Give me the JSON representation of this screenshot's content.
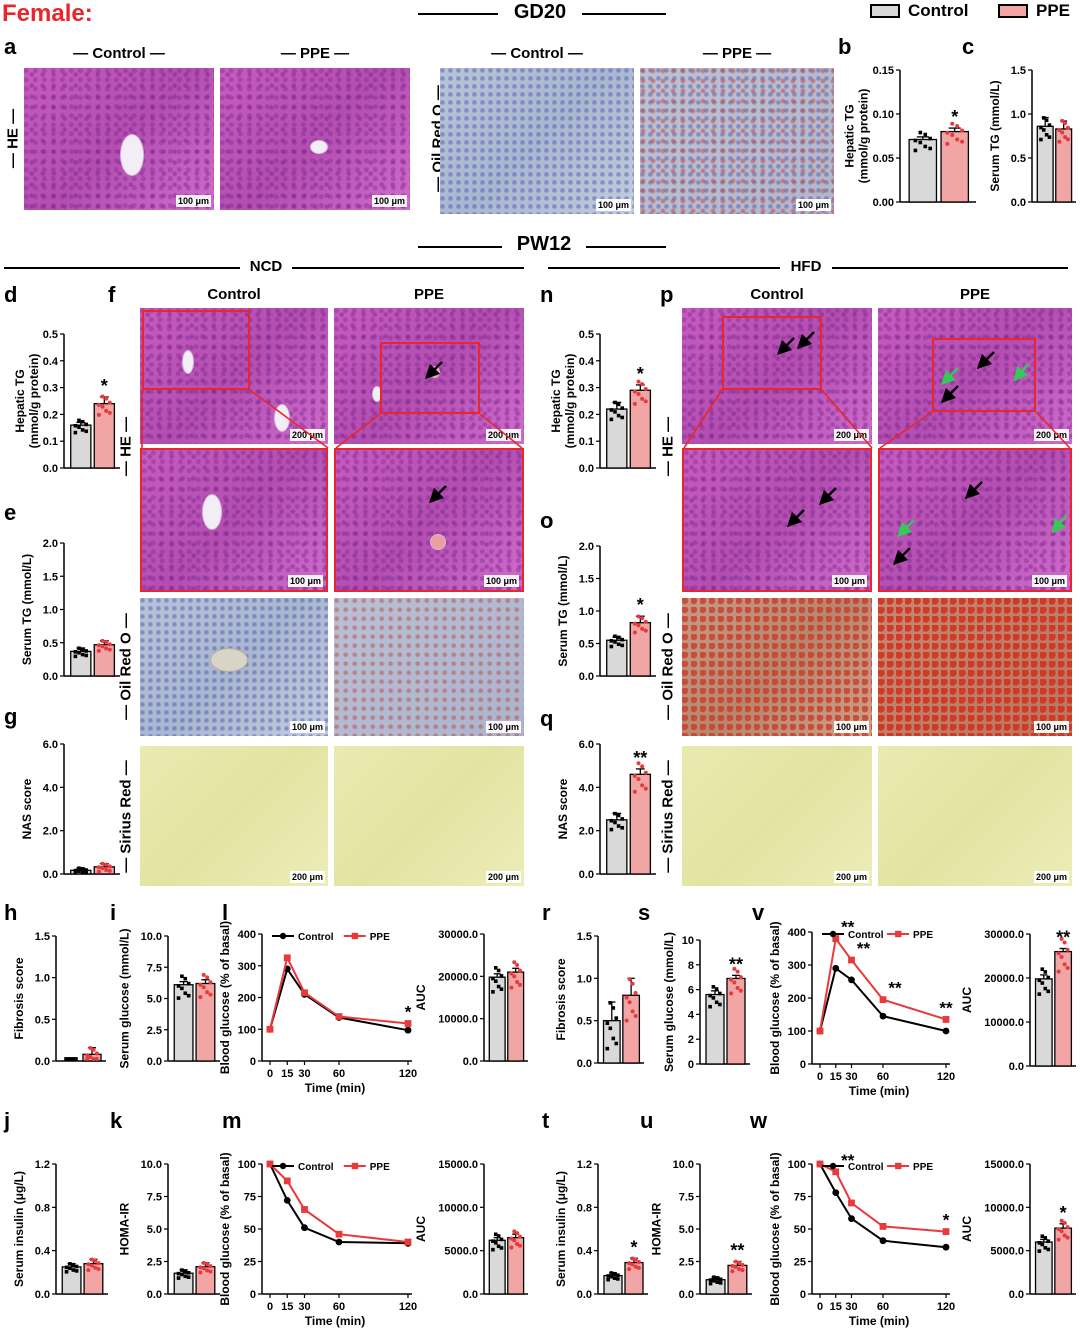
{
  "figure": {
    "section_female": "Female:",
    "gd_header": "GD20",
    "pw_header": "PW12",
    "ncd_header": "NCD",
    "hfd_header": "HFD",
    "legend": {
      "control": "Control",
      "ppe": "PPE"
    },
    "colors": {
      "control": "#d9d9d9",
      "ppe": "#f2a5a5",
      "ppe_line": "#e8393d",
      "control_line": "#000000",
      "red_text": "#e8262b"
    },
    "col_control": "— Control —",
    "col_ppe": "— PPE —",
    "col_control_plain": "Control",
    "col_ppe_plain": "PPE",
    "row_he": "— HE —",
    "row_oil": "— Oil Red O —",
    "row_sirius": "— Sirius Red —",
    "scale_100": "100 μm",
    "scale_200": "200 μm",
    "panel_letters": [
      "a",
      "b",
      "c",
      "d",
      "e",
      "f",
      "g",
      "h",
      "i",
      "j",
      "k",
      "l",
      "m",
      "n",
      "o",
      "p",
      "q",
      "r",
      "s",
      "t",
      "u",
      "v",
      "w"
    ]
  },
  "chart_data": [
    {
      "id": "b",
      "type": "bar",
      "ylabel": "Hepatic TG\n(mmol/g protein)",
      "yticks": [
        "0.00",
        "0.05",
        "0.10",
        "0.15"
      ],
      "ylim": [
        0,
        0.15
      ],
      "categories": [
        "Control",
        "PPE"
      ],
      "values": [
        0.071,
        0.08
      ],
      "errors": [
        0.003,
        0.004
      ],
      "sig": [
        "",
        "*"
      ]
    },
    {
      "id": "c",
      "type": "bar",
      "ylabel": "Serum TG (mmol/L)",
      "yticks": [
        "0.0",
        "0.5",
        "1.0",
        "1.5"
      ],
      "ylim": [
        0,
        1.5
      ],
      "categories": [
        "Control",
        "PPE"
      ],
      "values": [
        0.86,
        0.83
      ],
      "errors": [
        0.1,
        0.09
      ],
      "sig": [
        "",
        ""
      ]
    },
    {
      "id": "d",
      "type": "bar",
      "ylabel": "Hepatic TG\n(mmol/g protein)",
      "yticks": [
        "0.0",
        "0.1",
        "0.2",
        "0.3",
        "0.4",
        "0.5"
      ],
      "ylim": [
        0,
        0.5
      ],
      "categories": [
        "Control",
        "PPE"
      ],
      "values": [
        0.16,
        0.24
      ],
      "errors": [
        0.01,
        0.025
      ],
      "sig": [
        "",
        "*"
      ]
    },
    {
      "id": "e",
      "type": "bar",
      "ylabel": "Serum TG (mmol/L)",
      "yticks": [
        "0.0",
        "0.5",
        "1.0",
        "1.5",
        "2.0"
      ],
      "ylim": [
        0,
        2.0
      ],
      "categories": [
        "Control",
        "PPE"
      ],
      "values": [
        0.37,
        0.47
      ],
      "errors": [
        0.05,
        0.06
      ],
      "sig": [
        "",
        ""
      ]
    },
    {
      "id": "g",
      "type": "bar",
      "ylabel": "NAS score",
      "yticks": [
        "0.0",
        "2.0",
        "4.0",
        "6.0"
      ],
      "ylim": [
        0,
        6
      ],
      "categories": [
        "Control",
        "PPE"
      ],
      "values": [
        0.17,
        0.33
      ],
      "errors": [
        0.1,
        0.15
      ],
      "sig": [
        "",
        ""
      ]
    },
    {
      "id": "n",
      "type": "bar",
      "ylabel": "Hepatic TG\n(mmol/g protein)",
      "yticks": [
        "0.0",
        "0.1",
        "0.2",
        "0.3",
        "0.4",
        "0.5"
      ],
      "ylim": [
        0,
        0.5
      ],
      "categories": [
        "Control",
        "PPE"
      ],
      "values": [
        0.22,
        0.29
      ],
      "errors": [
        0.025,
        0.02
      ],
      "sig": [
        "",
        "*"
      ]
    },
    {
      "id": "o",
      "type": "bar",
      "ylabel": "Serum TG (mmol/L)",
      "yticks": [
        "0.0",
        "0.5",
        "1.0",
        "1.5",
        "2.0"
      ],
      "ylim": [
        0,
        2.0
      ],
      "categories": [
        "Control",
        "PPE"
      ],
      "values": [
        0.55,
        0.82
      ],
      "errors": [
        0.05,
        0.1
      ],
      "sig": [
        "",
        "*"
      ]
    },
    {
      "id": "q",
      "type": "bar",
      "ylabel": "NAS score",
      "yticks": [
        "0.0",
        "2.0",
        "4.0",
        "6.0"
      ],
      "ylim": [
        0,
        6
      ],
      "categories": [
        "Control",
        "PPE"
      ],
      "values": [
        2.5,
        4.6
      ],
      "errors": [
        0.3,
        0.25
      ],
      "sig": [
        "",
        "**"
      ]
    },
    {
      "id": "h",
      "type": "bar",
      "ylabel": "Fibrosis score",
      "yticks": [
        "0.0",
        "0.5",
        "1.0",
        "1.5"
      ],
      "ylim": [
        0,
        1.5
      ],
      "categories": [
        "Control",
        "PPE"
      ],
      "values": [
        0.0,
        0.08
      ],
      "errors": [
        0,
        0.08
      ],
      "sig": [
        "",
        ""
      ]
    },
    {
      "id": "i",
      "type": "bar",
      "ylabel": "Serum glucose (mmol/L)",
      "yticks": [
        "0.0",
        "2.5",
        "5.0",
        "7.5",
        "10.0"
      ],
      "ylim": [
        0,
        10
      ],
      "categories": [
        "Control",
        "PPE"
      ],
      "values": [
        6.1,
        6.2
      ],
      "errors": [
        0.25,
        0.3
      ],
      "sig": [
        "",
        ""
      ]
    },
    {
      "id": "l",
      "type": "line",
      "xlabel": "Time (min)",
      "ylabel": "Blood glucose (% of basal)",
      "x": [
        0,
        15,
        30,
        60,
        120
      ],
      "xticks": [
        "0",
        "15",
        "30",
        "60",
        "120"
      ],
      "yticks": [
        "0",
        "100",
        "200",
        "300",
        "400"
      ],
      "ylim": [
        0,
        400
      ],
      "series": [
        {
          "name": "Control",
          "values": [
            100,
            290,
            210,
            137,
            97
          ]
        },
        {
          "name": "PPE",
          "values": [
            100,
            325,
            215,
            140,
            118
          ]
        }
      ],
      "sig": [
        "",
        "",
        "",
        "",
        "*"
      ]
    },
    {
      "id": "l_auc",
      "type": "bar",
      "ylabel": "AUC",
      "yticks": [
        "0.0",
        "10000.0",
        "20000.0",
        "30000.0"
      ],
      "ylim": [
        0,
        30000
      ],
      "categories": [
        "Control",
        "PPE"
      ],
      "values": [
        19800,
        21000
      ],
      "errors": [
        800,
        900
      ],
      "sig": [
        "",
        ""
      ]
    },
    {
      "id": "r",
      "type": "bar",
      "ylabel": "Fibrosis score",
      "yticks": [
        "0.0",
        "0.5",
        "1.0",
        "1.5"
      ],
      "ylim": [
        0,
        1.5
      ],
      "categories": [
        "Control",
        "PPE"
      ],
      "values": [
        0.5,
        0.8
      ],
      "errors": [
        0.22,
        0.2
      ],
      "sig": [
        "",
        ""
      ]
    },
    {
      "id": "s",
      "type": "bar",
      "ylabel": "Serum glucose (mmol/L)",
      "yticks": [
        "0",
        "2",
        "4",
        "6",
        "8",
        "10"
      ],
      "ylim": [
        0,
        10
      ],
      "categories": [
        "Control",
        "PPE"
      ],
      "values": [
        5.6,
        6.9
      ],
      "errors": [
        0.3,
        0.25
      ],
      "sig": [
        "",
        "**"
      ]
    },
    {
      "id": "v",
      "type": "line",
      "xlabel": "Time (min)",
      "ylabel": "Blood glucose (% of basal)",
      "x": [
        0,
        15,
        30,
        60,
        120
      ],
      "xticks": [
        "0",
        "15",
        "30",
        "60",
        "120"
      ],
      "yticks": [
        "0",
        "100",
        "200",
        "300",
        "400"
      ],
      "ylim": [
        0,
        400
      ],
      "series": [
        {
          "name": "Control",
          "values": [
            100,
            290,
            255,
            145,
            100
          ]
        },
        {
          "name": "PPE",
          "values": [
            100,
            380,
            315,
            195,
            135
          ]
        }
      ],
      "sig": [
        "",
        "**",
        "**",
        "**",
        "**"
      ]
    },
    {
      "id": "v_auc",
      "type": "bar",
      "ylabel": "AUC",
      "yticks": [
        "0.0",
        "10000.0",
        "20000.0",
        "30000.0"
      ],
      "ylim": [
        0,
        30000
      ],
      "categories": [
        "Control",
        "PPE"
      ],
      "values": [
        19800,
        26000
      ],
      "errors": [
        900,
        700
      ],
      "sig": [
        "",
        "**"
      ]
    },
    {
      "id": "j",
      "type": "bar",
      "ylabel": "Serum insulin (μg/L)",
      "yticks": [
        "0.0",
        "0.4",
        "0.8",
        "1.2"
      ],
      "ylim": [
        0,
        1.2
      ],
      "categories": [
        "Control",
        "PPE"
      ],
      "values": [
        0.25,
        0.28
      ],
      "errors": [
        0.03,
        0.04
      ],
      "sig": [
        "",
        ""
      ]
    },
    {
      "id": "k",
      "type": "bar",
      "ylabel": "HOMA-IR",
      "yticks": [
        "0.0",
        "2.5",
        "5.0",
        "7.5",
        "10.0"
      ],
      "ylim": [
        0,
        10
      ],
      "categories": [
        "Control",
        "PPE"
      ],
      "values": [
        1.6,
        2.1
      ],
      "errors": [
        0.25,
        0.3
      ],
      "sig": [
        "",
        ""
      ]
    },
    {
      "id": "m",
      "type": "line",
      "xlabel": "Time (min)",
      "ylabel": "Blood glucose (% of basal)",
      "x": [
        0,
        15,
        30,
        60,
        120
      ],
      "xticks": [
        "0",
        "15",
        "30",
        "60",
        "120"
      ],
      "yticks": [
        "0",
        "25",
        "50",
        "75",
        "100"
      ],
      "ylim": [
        0,
        100
      ],
      "series": [
        {
          "name": "Control",
          "values": [
            100,
            72,
            51,
            40,
            39
          ]
        },
        {
          "name": "PPE",
          "values": [
            100,
            87,
            65,
            46,
            40
          ]
        }
      ],
      "sig": [
        "",
        "",
        "",
        "",
        ""
      ]
    },
    {
      "id": "m_auc",
      "type": "bar",
      "ylabel": "AUC",
      "yticks": [
        "0.0",
        "5000.0",
        "10000.0",
        "15000.0"
      ],
      "ylim": [
        0,
        15000
      ],
      "categories": [
        "Control",
        "PPE"
      ],
      "values": [
        6200,
        6500
      ],
      "errors": [
        300,
        400
      ],
      "sig": [
        "",
        ""
      ]
    },
    {
      "id": "t",
      "type": "bar",
      "ylabel": "Serum insulin (μg/L)",
      "yticks": [
        "0.0",
        "0.4",
        "0.8",
        "1.2"
      ],
      "ylim": [
        0,
        1.2
      ],
      "categories": [
        "Control",
        "PPE"
      ],
      "values": [
        0.17,
        0.29
      ],
      "errors": [
        0.025,
        0.04
      ],
      "sig": [
        "",
        "*"
      ]
    },
    {
      "id": "u",
      "type": "bar",
      "ylabel": "HOMA-IR",
      "yticks": [
        "0.0",
        "2.5",
        "5.0",
        "7.5",
        "10.0"
      ],
      "ylim": [
        0,
        10
      ],
      "categories": [
        "Control",
        "PPE"
      ],
      "values": [
        1.1,
        2.2
      ],
      "errors": [
        0.2,
        0.3
      ],
      "sig": [
        "",
        "**"
      ]
    },
    {
      "id": "w",
      "type": "line",
      "xlabel": "Time (min)",
      "ylabel": "Blood glucose (% of basal)",
      "x": [
        0,
        15,
        30,
        60,
        120
      ],
      "xticks": [
        "0",
        "15",
        "30",
        "60",
        "120"
      ],
      "yticks": [
        "0",
        "25",
        "50",
        "75",
        "100"
      ],
      "ylim": [
        0,
        100
      ],
      "series": [
        {
          "name": "Control",
          "values": [
            100,
            78,
            58,
            41,
            36
          ]
        },
        {
          "name": "PPE",
          "values": [
            100,
            94,
            70,
            52,
            48
          ]
        }
      ],
      "sig": [
        "",
        "**",
        "",
        "",
        "*"
      ]
    },
    {
      "id": "w_auc",
      "type": "bar",
      "ylabel": "AUC",
      "yticks": [
        "0.0",
        "5000.0",
        "10000.0",
        "15000.0"
      ],
      "ylim": [
        0,
        15000
      ],
      "categories": [
        "Control",
        "PPE"
      ],
      "values": [
        6000,
        7600
      ],
      "errors": [
        300,
        500
      ],
      "sig": [
        "",
        "*"
      ]
    }
  ]
}
